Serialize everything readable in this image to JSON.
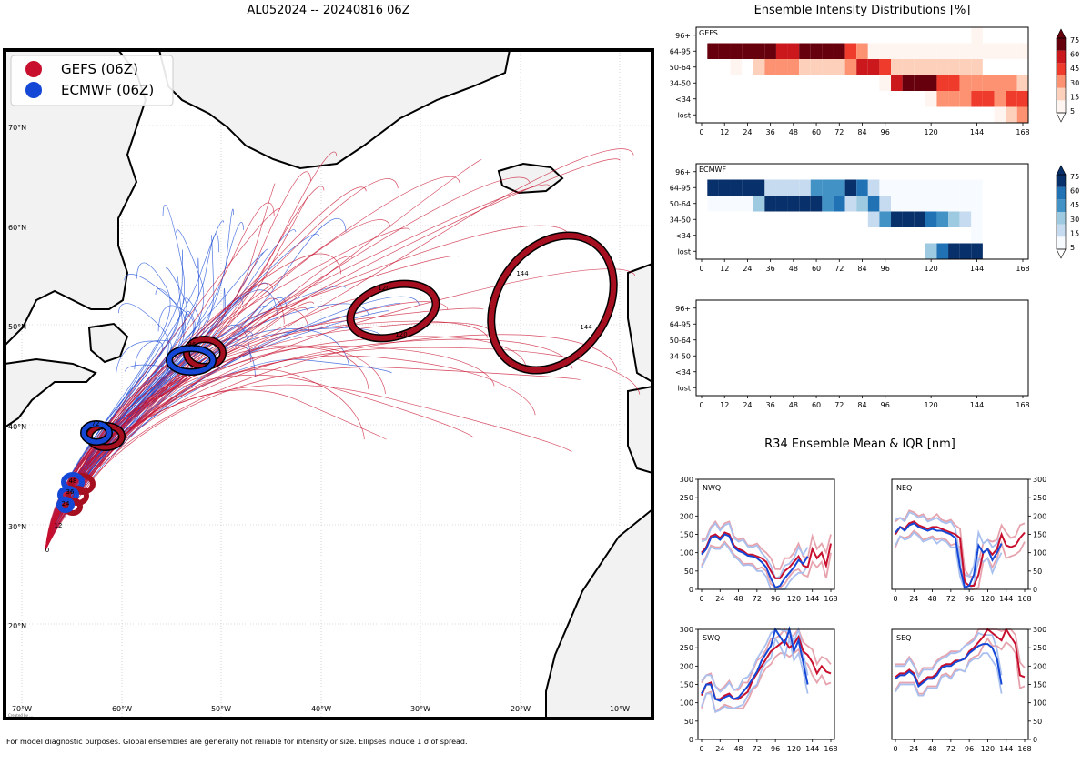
{
  "map": {
    "title": "AL052024 -- 20240816 06Z",
    "legend": [
      {
        "label": "GEFS (06Z)",
        "color": "#c8102e"
      },
      {
        "label": "ECMWF (06Z)",
        "color": "#1447d6"
      }
    ],
    "lat_labels": [
      "70°N",
      "60°N",
      "50°N",
      "40°N",
      "30°N",
      "20°N"
    ],
    "lon_labels": [
      "70°W",
      "60°W",
      "50°W",
      "40°W",
      "30°W",
      "20°W",
      "10°W"
    ],
    "track_hour_labels": [
      "0",
      "12",
      "24",
      "36",
      "48",
      "72",
      "96",
      "120",
      "120",
      "144",
      "144"
    ],
    "watermark": "Created by ..."
  },
  "footnote": "For model diagnostic purposes. Global ensembles are generally not reliable for intensity or size. Ellipses include 1 σ of spread.",
  "intensity": {
    "title": "Ensemble Intensity Distributions [%]",
    "row_labels": [
      "96+",
      "64-95",
      "50-64",
      "34-50",
      "<34",
      "lost"
    ],
    "x_ticks": [
      "0",
      "12",
      "24",
      "36",
      "48",
      "60",
      "72",
      "84",
      "96",
      "120",
      "144",
      "168"
    ],
    "panels": [
      {
        "name": "GEFS",
        "colorbar_ticks": [
          "75",
          "60",
          "45",
          "30",
          "15",
          "5"
        ]
      },
      {
        "name": "ECMWF",
        "colorbar_ticks": [
          "75",
          "60",
          "45",
          "30",
          "15",
          "5"
        ]
      },
      {
        "name": ""
      }
    ]
  },
  "r34": {
    "title": "R34 Ensemble Mean & IQR [nm]",
    "y_ticks": [
      "300",
      "250",
      "200",
      "150",
      "100",
      "50",
      "0"
    ],
    "x_ticks": [
      "0",
      "24",
      "48",
      "72",
      "96",
      "120",
      "144",
      "168"
    ],
    "panels": [
      {
        "name": "NWQ"
      },
      {
        "name": "NEQ"
      },
      {
        "name": "SWQ"
      },
      {
        "name": "SEQ"
      }
    ]
  },
  "chart_data": [
    {
      "type": "heatmap",
      "title": "GEFS",
      "rows": [
        "96+",
        "64-95",
        "50-64",
        "34-50",
        "<34",
        "lost"
      ],
      "hours": [
        0,
        6,
        12,
        18,
        24,
        30,
        36,
        42,
        48,
        54,
        60,
        66,
        72,
        78,
        84,
        90,
        96,
        102,
        108,
        114,
        120,
        126,
        132,
        138,
        144,
        150,
        156,
        162,
        168
      ],
      "values": [
        [
          0,
          0,
          0,
          0,
          0,
          0,
          0,
          0,
          0,
          0,
          0,
          0,
          0,
          0,
          0,
          0,
          0,
          0,
          0,
          0,
          0,
          0,
          0,
          0,
          10,
          0,
          0,
          0,
          0
        ],
        [
          0,
          80,
          80,
          80,
          80,
          80,
          80,
          65,
          65,
          80,
          80,
          80,
          80,
          50,
          30,
          10,
          5,
          5,
          5,
          5,
          5,
          5,
          5,
          5,
          5,
          5,
          5,
          5,
          5
        ],
        [
          0,
          0,
          0,
          10,
          0,
          15,
          30,
          40,
          40,
          15,
          15,
          15,
          15,
          30,
          60,
          70,
          55,
          20,
          15,
          15,
          15,
          15,
          15,
          15,
          15,
          0,
          0,
          0,
          0
        ],
        [
          0,
          0,
          0,
          0,
          0,
          0,
          0,
          0,
          0,
          0,
          0,
          0,
          0,
          0,
          0,
          0,
          10,
          70,
          80,
          80,
          80,
          50,
          50,
          40,
          40,
          40,
          40,
          40,
          25
        ],
        [
          0,
          0,
          0,
          0,
          0,
          0,
          0,
          0,
          0,
          0,
          0,
          0,
          0,
          0,
          0,
          0,
          0,
          0,
          0,
          0,
          5,
          40,
          40,
          40,
          50,
          50,
          40,
          50,
          50
        ],
        [
          0,
          0,
          0,
          0,
          0,
          0,
          0,
          0,
          0,
          0,
          0,
          0,
          0,
          0,
          0,
          0,
          0,
          0,
          0,
          0,
          0,
          0,
          0,
          0,
          0,
          0,
          10,
          20,
          40
        ]
      ]
    },
    {
      "type": "heatmap",
      "title": "ECMWF",
      "rows": [
        "96+",
        "64-95",
        "50-64",
        "34-50",
        "<34",
        "lost"
      ],
      "hours": [
        0,
        6,
        12,
        18,
        24,
        30,
        36,
        42,
        48,
        54,
        60,
        66,
        72,
        78,
        84,
        90,
        96,
        102,
        108,
        114,
        120,
        126,
        132,
        138,
        144
      ],
      "values": [
        [
          0,
          0,
          0,
          0,
          0,
          0,
          0,
          0,
          0,
          0,
          0,
          0,
          0,
          0,
          0,
          0,
          0,
          0,
          0,
          0,
          0,
          0,
          0,
          0,
          0
        ],
        [
          0,
          80,
          80,
          80,
          80,
          80,
          25,
          25,
          25,
          15,
          50,
          50,
          50,
          80,
          60,
          25,
          5,
          5,
          5,
          5,
          5,
          5,
          5,
          5,
          5
        ],
        [
          0,
          10,
          10,
          10,
          10,
          30,
          80,
          80,
          80,
          80,
          80,
          45,
          60,
          25,
          40,
          60,
          25,
          5,
          5,
          5,
          5,
          5,
          5,
          5,
          5
        ],
        [
          0,
          0,
          0,
          0,
          0,
          0,
          0,
          0,
          0,
          0,
          0,
          0,
          0,
          0,
          0,
          15,
          50,
          80,
          80,
          80,
          60,
          45,
          30,
          20,
          5
        ],
        [
          0,
          0,
          0,
          0,
          0,
          0,
          0,
          0,
          0,
          0,
          0,
          0,
          0,
          0,
          0,
          0,
          0,
          0,
          0,
          0,
          0,
          0,
          0,
          0,
          10
        ],
        [
          0,
          0,
          0,
          0,
          0,
          0,
          0,
          0,
          0,
          0,
          0,
          0,
          0,
          0,
          0,
          0,
          0,
          0,
          0,
          0,
          40,
          60,
          80,
          80,
          80
        ]
      ]
    },
    {
      "type": "line",
      "title": "NWQ",
      "x": [
        0,
        6,
        12,
        18,
        24,
        30,
        36,
        42,
        48,
        54,
        60,
        66,
        72,
        78,
        84,
        90,
        96,
        102,
        108,
        114,
        120,
        126,
        132,
        138,
        144,
        150,
        156,
        162,
        168
      ],
      "series": [
        {
          "name": "GEFS mean",
          "values": [
            100,
            115,
            145,
            150,
            140,
            155,
            150,
            120,
            110,
            105,
            95,
            95,
            90,
            85,
            75,
            50,
            30,
            30,
            50,
            60,
            75,
            90,
            65,
            60,
            110,
            85,
            100,
            65,
            125
          ]
        },
        {
          "name": "ECMWF mean",
          "values": [
            95,
            110,
            140,
            145,
            135,
            150,
            145,
            115,
            105,
            100,
            92,
            90,
            85,
            75,
            60,
            30,
            5,
            10,
            30,
            45,
            60,
            80,
            70,
            90,
            null,
            null,
            null,
            null,
            null
          ]
        }
      ],
      "ylim": [
        0,
        300
      ],
      "xlim": [
        0,
        168
      ]
    },
    {
      "type": "line",
      "title": "NEQ",
      "x": [
        0,
        6,
        12,
        18,
        24,
        30,
        36,
        42,
        48,
        54,
        60,
        66,
        72,
        78,
        84,
        90,
        96,
        102,
        108,
        114,
        120,
        126,
        132,
        138,
        144,
        150,
        156,
        162,
        168
      ],
      "series": [
        {
          "name": "GEFS mean",
          "values": [
            150,
            170,
            165,
            180,
            185,
            175,
            170,
            165,
            170,
            170,
            165,
            160,
            155,
            150,
            140,
            20,
            10,
            10,
            40,
            100,
            110,
            95,
            110,
            150,
            120,
            115,
            120,
            140,
            155
          ]
        },
        {
          "name": "ECMWF mean",
          "values": [
            155,
            170,
            160,
            175,
            180,
            170,
            165,
            160,
            165,
            160,
            160,
            155,
            150,
            140,
            60,
            5,
            10,
            40,
            120,
            100,
            110,
            80,
            100,
            125,
            null,
            null,
            null,
            null,
            null
          ]
        }
      ],
      "ylim": [
        0,
        300
      ],
      "xlim": [
        0,
        168
      ]
    },
    {
      "type": "line",
      "title": "SWQ",
      "x": [
        0,
        6,
        12,
        18,
        24,
        30,
        36,
        42,
        48,
        54,
        60,
        66,
        72,
        78,
        84,
        90,
        96,
        102,
        108,
        114,
        120,
        126,
        132,
        138,
        144,
        150,
        156,
        162,
        168
      ],
      "series": [
        {
          "name": "GEFS mean",
          "values": [
            120,
            150,
            155,
            110,
            110,
            120,
            125,
            110,
            110,
            120,
            130,
            160,
            180,
            200,
            220,
            240,
            250,
            260,
            270,
            250,
            260,
            280,
            240,
            230,
            210,
            180,
            200,
            185,
            180
          ]
        },
        {
          "name": "ECMWF mean",
          "values": [
            125,
            150,
            150,
            110,
            105,
            115,
            120,
            110,
            115,
            130,
            145,
            165,
            185,
            215,
            235,
            255,
            300,
            280,
            260,
            300,
            240,
            270,
            210,
            150,
            null,
            null,
            null,
            null,
            null
          ]
        }
      ],
      "ylim": [
        0,
        300
      ],
      "xlim": [
        0,
        168
      ]
    },
    {
      "type": "line",
      "title": "SEQ",
      "x": [
        0,
        6,
        12,
        18,
        24,
        30,
        36,
        42,
        48,
        54,
        60,
        66,
        72,
        78,
        84,
        90,
        96,
        102,
        108,
        114,
        120,
        126,
        132,
        138,
        144,
        150,
        156,
        162,
        168
      ],
      "series": [
        {
          "name": "GEFS mean",
          "values": [
            170,
            180,
            180,
            190,
            180,
            150,
            160,
            170,
            170,
            180,
            200,
            205,
            205,
            215,
            215,
            220,
            240,
            250,
            265,
            280,
            300,
            290,
            280,
            270,
            300,
            280,
            260,
            175,
            170
          ]
        },
        {
          "name": "ECMWF mean",
          "values": [
            165,
            175,
            175,
            185,
            175,
            145,
            155,
            165,
            165,
            175,
            195,
            200,
            200,
            210,
            215,
            220,
            235,
            245,
            255,
            260,
            260,
            250,
            220,
            150,
            null,
            null,
            null,
            null,
            null
          ]
        }
      ],
      "ylim": [
        0,
        300
      ],
      "xlim": [
        0,
        168
      ]
    }
  ]
}
